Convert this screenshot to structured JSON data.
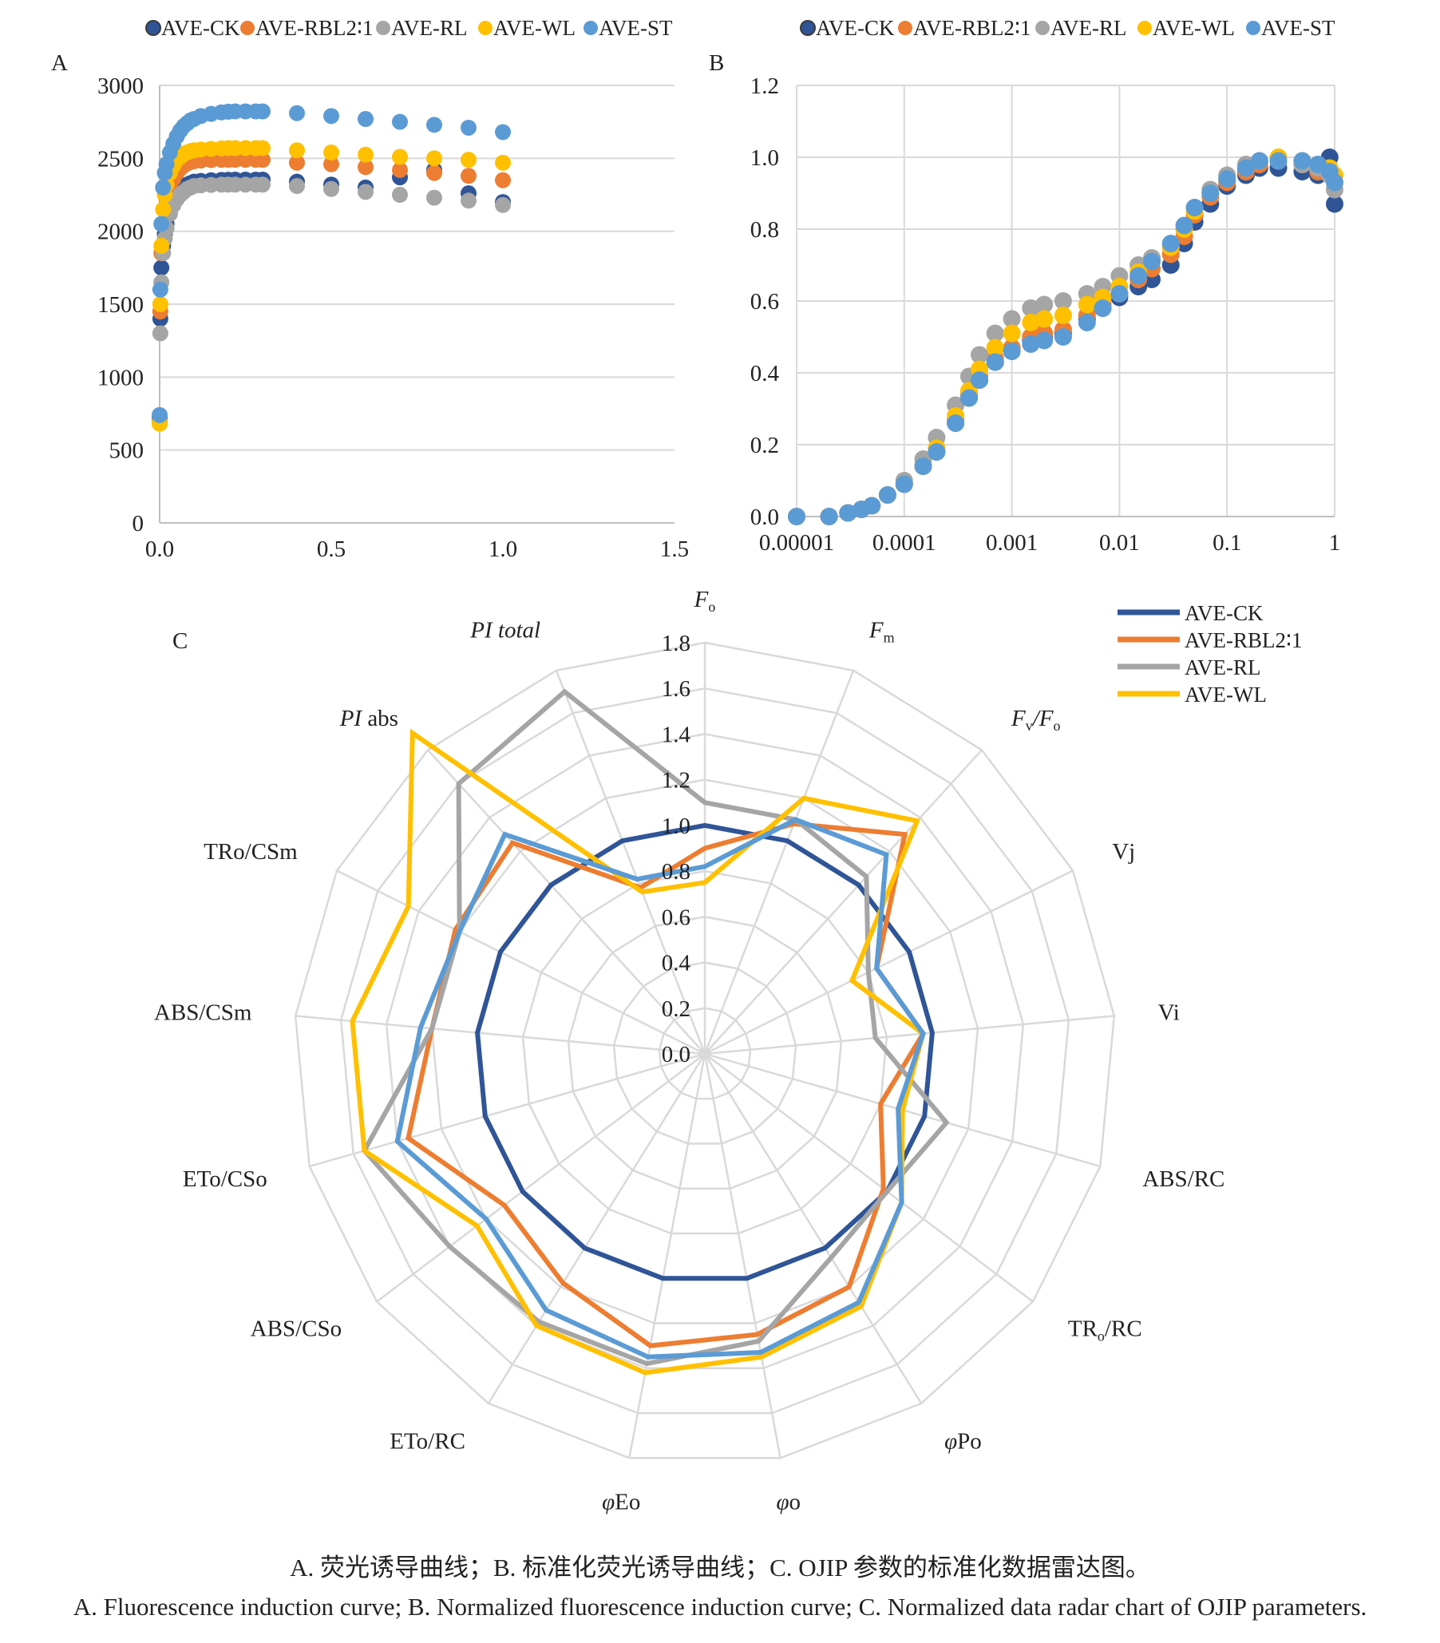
{
  "legend_series": [
    "AVE-CK",
    "AVE-RBL2∶1",
    "AVE-RL",
    "AVE-WL",
    "AVE-ST"
  ],
  "colors": {
    "AVE-CK": "#2F5597",
    "AVE-RBL2∶1": "#ED7D31",
    "AVE-RL": "#A5A5A5",
    "AVE-WL": "#FFC000",
    "AVE-ST": "#5B9BD5",
    "grid": "#d9d9d9",
    "axis": "#bfbfbf"
  },
  "chart_data": [
    {
      "panel": "A",
      "type": "scatter",
      "xlim": [
        0,
        1.5
      ],
      "xticks": [
        "0.0",
        "0.5",
        "1.0",
        "1.5"
      ],
      "ylim": [
        0,
        3000
      ],
      "yticks": [
        "0",
        "500",
        "1000",
        "1500",
        "2000",
        "2500",
        "3000"
      ],
      "grid": "horizontal",
      "legend": "top",
      "x": [
        0.0,
        0.002,
        0.005,
        0.01,
        0.015,
        0.02,
        0.03,
        0.04,
        0.05,
        0.06,
        0.07,
        0.08,
        0.09,
        0.1,
        0.12,
        0.15,
        0.18,
        0.2,
        0.22,
        0.25,
        0.28,
        0.3,
        0.4,
        0.5,
        0.6,
        0.7,
        0.8,
        0.9,
        1.0
      ],
      "series": [
        {
          "name": "AVE-CK",
          "values": [
            720,
            1400,
            1750,
            1900,
            1980,
            2050,
            2140,
            2200,
            2250,
            2280,
            2300,
            2320,
            2330,
            2340,
            2345,
            2350,
            2352,
            2353,
            2354,
            2354,
            2354,
            2354,
            2340,
            2320,
            2300,
            2370,
            2420,
            2260,
            2200
          ]
        },
        {
          "name": "AVE-RBL2∶1",
          "values": [
            700,
            1450,
            1850,
            2050,
            2150,
            2220,
            2300,
            2360,
            2400,
            2430,
            2450,
            2465,
            2475,
            2480,
            2485,
            2488,
            2490,
            2490,
            2490,
            2490,
            2490,
            2490,
            2470,
            2460,
            2440,
            2420,
            2400,
            2380,
            2350
          ]
        },
        {
          "name": "AVE-RL",
          "values": [
            690,
            1300,
            1650,
            1850,
            1950,
            2020,
            2120,
            2180,
            2220,
            2250,
            2270,
            2290,
            2300,
            2310,
            2315,
            2318,
            2320,
            2320,
            2320,
            2320,
            2320,
            2320,
            2310,
            2290,
            2270,
            2250,
            2230,
            2210,
            2180
          ]
        },
        {
          "name": "AVE-WL",
          "values": [
            680,
            1500,
            1900,
            2150,
            2250,
            2320,
            2400,
            2450,
            2490,
            2510,
            2530,
            2540,
            2550,
            2555,
            2560,
            2565,
            2568,
            2570,
            2570,
            2570,
            2570,
            2570,
            2555,
            2540,
            2525,
            2510,
            2500,
            2490,
            2470
          ]
        },
        {
          "name": "AVE-ST",
          "values": [
            740,
            1600,
            2050,
            2300,
            2400,
            2460,
            2540,
            2600,
            2650,
            2690,
            2720,
            2740,
            2760,
            2770,
            2790,
            2805,
            2815,
            2820,
            2822,
            2822,
            2822,
            2822,
            2810,
            2790,
            2770,
            2750,
            2730,
            2710,
            2680
          ]
        }
      ]
    },
    {
      "panel": "B",
      "type": "scatter",
      "xscale": "log",
      "xlim": [
        1e-05,
        1
      ],
      "xticks": [
        "0.00001",
        "0.0001",
        "0.001",
        "0.01",
        "0.1",
        "1"
      ],
      "ylim": [
        0,
        1.2
      ],
      "yticks": [
        "0.0",
        "0.2",
        "0.4",
        "0.6",
        "0.8",
        "1.0",
        "1.2"
      ],
      "grid": "both",
      "legend": "top",
      "x": [
        1e-05,
        2e-05,
        3e-05,
        4e-05,
        5e-05,
        7e-05,
        0.0001,
        0.00015,
        0.0002,
        0.0003,
        0.0004,
        0.0005,
        0.0007,
        0.001,
        0.0015,
        0.002,
        0.003,
        0.005,
        0.007,
        0.01,
        0.015,
        0.02,
        0.03,
        0.04,
        0.05,
        0.07,
        0.1,
        0.15,
        0.2,
        0.3,
        0.5,
        0.7,
        0.9,
        1.0
      ],
      "series": [
        {
          "name": "AVE-CK",
          "values": [
            0.0,
            0.0,
            0.01,
            0.02,
            0.03,
            0.06,
            0.09,
            0.14,
            0.18,
            0.26,
            0.33,
            0.38,
            0.43,
            0.46,
            0.49,
            0.5,
            0.51,
            0.55,
            0.58,
            0.61,
            0.64,
            0.66,
            0.7,
            0.76,
            0.82,
            0.87,
            0.92,
            0.95,
            0.97,
            0.97,
            0.96,
            0.95,
            1.0,
            0.87
          ]
        },
        {
          "name": "AVE-RBL2∶1",
          "values": [
            0.0,
            0.0,
            0.01,
            0.02,
            0.03,
            0.06,
            0.09,
            0.14,
            0.19,
            0.27,
            0.34,
            0.39,
            0.44,
            0.47,
            0.5,
            0.51,
            0.52,
            0.56,
            0.59,
            0.62,
            0.66,
            0.69,
            0.73,
            0.78,
            0.84,
            0.89,
            0.93,
            0.96,
            0.98,
            0.99,
            0.98,
            0.96,
            0.96,
            0.93
          ]
        },
        {
          "name": "AVE-RL",
          "values": [
            0.0,
            0.0,
            0.01,
            0.02,
            0.03,
            0.06,
            0.1,
            0.16,
            0.22,
            0.31,
            0.39,
            0.45,
            0.51,
            0.55,
            0.58,
            0.59,
            0.6,
            0.62,
            0.64,
            0.67,
            0.7,
            0.72,
            0.75,
            0.8,
            0.86,
            0.91,
            0.95,
            0.98,
            0.99,
            0.99,
            0.98,
            0.97,
            0.95,
            0.91
          ]
        },
        {
          "name": "AVE-WL",
          "values": [
            0.0,
            0.0,
            0.01,
            0.02,
            0.03,
            0.06,
            0.09,
            0.14,
            0.19,
            0.28,
            0.35,
            0.41,
            0.47,
            0.51,
            0.54,
            0.55,
            0.56,
            0.59,
            0.61,
            0.64,
            0.68,
            0.71,
            0.75,
            0.8,
            0.85,
            0.9,
            0.94,
            0.97,
            0.99,
            1.0,
            0.99,
            0.98,
            0.97,
            0.95
          ]
        },
        {
          "name": "AVE-ST",
          "values": [
            0.0,
            0.0,
            0.01,
            0.02,
            0.03,
            0.06,
            0.09,
            0.14,
            0.18,
            0.26,
            0.33,
            0.38,
            0.43,
            0.46,
            0.48,
            0.49,
            0.5,
            0.54,
            0.58,
            0.62,
            0.67,
            0.71,
            0.76,
            0.81,
            0.86,
            0.9,
            0.94,
            0.97,
            0.99,
            0.99,
            0.99,
            0.98,
            0.96,
            0.93
          ]
        }
      ]
    },
    {
      "panel": "C",
      "type": "radar",
      "axes": [
        "Fo",
        "Fm",
        "Fv/Fo",
        "Vj",
        "Vi",
        "ABS/RC",
        "TRo/RC",
        "φPo",
        "φo",
        "φEo",
        "ETo/RC",
        "ABS/CSo",
        "ETo/CSo",
        "ABS/CSm",
        "TRo/CSm",
        "PI abs",
        "PI total"
      ],
      "axis_labels": [
        {
          "main": "F",
          "sub": "o",
          "italic": true
        },
        {
          "main": "F",
          "sub": "m",
          "italic": true
        },
        {
          "main": "F",
          "sub": "v",
          "tail": "/F",
          "tail_sub": "o",
          "italic": true
        },
        {
          "main": "Vj"
        },
        {
          "main": "Vi"
        },
        {
          "main": "ABS/RC"
        },
        {
          "main": "TR",
          "sub": "o",
          "tail": "/RC"
        },
        {
          "main": "φ",
          "tail": "Po",
          "italic_main": true
        },
        {
          "main": "φ",
          "tail": "o",
          "italic_main": true
        },
        {
          "main": "φ",
          "tail": "Eo",
          "italic_main": true
        },
        {
          "main": "ETo/RC"
        },
        {
          "main": "ABS/CSo"
        },
        {
          "main": "ETo/CSo"
        },
        {
          "main": "ABS/CSm"
        },
        {
          "main": "TRo/CSm"
        },
        {
          "main": "PI",
          "tail": " abs",
          "italic_main": true
        },
        {
          "main": "PI total",
          "italic": true
        }
      ],
      "rlim": [
        0,
        1.8
      ],
      "rticks": [
        "0.0",
        "0.2",
        "0.4",
        "0.6",
        "0.8",
        "1.0",
        "1.2",
        "1.4",
        "1.6",
        "1.8"
      ],
      "legend": "top-right",
      "legend_series": [
        "AVE-CK",
        "AVE-RBL2∶1",
        "AVE-RL",
        "AVE-WL"
      ],
      "series": [
        {
          "name": "AVE-CK",
          "values": [
            1.0,
            1.0,
            1.0,
            1.0,
            1.0,
            1.0,
            1.0,
            1.0,
            1.0,
            1.0,
            1.0,
            1.0,
            1.0,
            1.0,
            1.0,
            1.0,
            1.0
          ]
        },
        {
          "name": "AVE-RBL2∶1",
          "values": [
            0.9,
            1.08,
            1.3,
            0.84,
            0.96,
            0.8,
            0.98,
            1.2,
            1.25,
            1.3,
            1.18,
            1.1,
            1.35,
            1.2,
            1.22,
            1.25,
            0.78
          ]
        },
        {
          "name": "AVE-RL",
          "values": [
            1.1,
            1.1,
            1.05,
            0.8,
            0.75,
            1.1,
            1.0,
            1.05,
            1.28,
            1.38,
            1.38,
            1.4,
            1.55,
            1.2,
            1.2,
            1.6,
            1.7
          ]
        },
        {
          "name": "AVE-WL",
          "values": [
            0.75,
            1.2,
            1.38,
            0.72,
            0.96,
            0.9,
            1.08,
            1.3,
            1.35,
            1.42,
            1.4,
            1.25,
            1.55,
            1.55,
            1.45,
            1.9,
            0.76
          ]
        },
        {
          "name": "AVE-ST",
          "values": [
            0.82,
            1.1,
            1.18,
            0.84,
            0.96,
            0.88,
            1.08,
            1.28,
            1.33,
            1.35,
            1.32,
            1.2,
            1.4,
            1.25,
            1.2,
            1.3,
            0.82
          ]
        }
      ]
    }
  ],
  "panel_labels": {
    "a": "A",
    "b": "B",
    "c": "C"
  },
  "caption_cn": "A. 荧光诱导曲线；B. 标准化荧光诱导曲线；C. OJIP 参数的标准化数据雷达图。",
  "caption_en": "A. Fluorescence induction curve; B. Normalized fluorescence induction curve; C. Normalized data radar chart of OJIP parameters."
}
